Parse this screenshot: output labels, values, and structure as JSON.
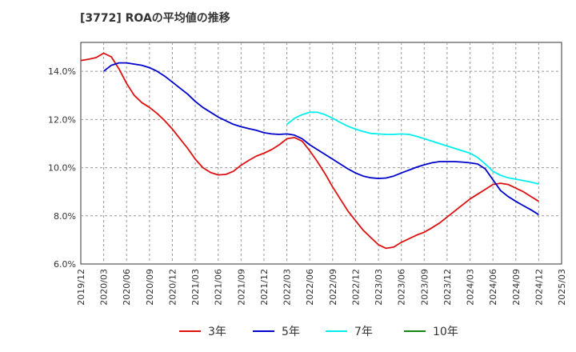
{
  "chart_data": {
    "type": "line",
    "title": "[3772]  ROAの平均値の推移",
    "xlabel": "",
    "ylabel": "",
    "ylim": [
      6.0,
      15.2
    ],
    "yticks": [
      6.0,
      8.0,
      10.0,
      12.0,
      14.0
    ],
    "ytick_labels": [
      "6.0%",
      "8.0%",
      "10.0%",
      "12.0%",
      "14.0%"
    ],
    "xlim": [
      "2019-12",
      "2025-03"
    ],
    "xtick_labels": [
      "2019/12",
      "2020/03",
      "2020/06",
      "2020/09",
      "2020/12",
      "2021/03",
      "2021/06",
      "2021/09",
      "2021/12",
      "2022/03",
      "2022/06",
      "2022/09",
      "2022/12",
      "2023/03",
      "2023/06",
      "2023/09",
      "2023/12",
      "2024/03",
      "2024/06",
      "2024/09",
      "2024/12",
      "2025/03"
    ],
    "grid": true,
    "legend_position": "bottom",
    "series": [
      {
        "name": "3年",
        "color": "#dd1111",
        "points": [
          [
            "2019-12",
            14.45
          ],
          [
            "2020-01",
            14.5
          ],
          [
            "2020-02",
            14.57
          ],
          [
            "2020-03",
            14.75
          ],
          [
            "2020-04",
            14.6
          ],
          [
            "2020-05",
            14.1
          ],
          [
            "2020-06",
            13.5
          ],
          [
            "2020-07",
            13.0
          ],
          [
            "2020-08",
            12.7
          ],
          [
            "2020-09",
            12.5
          ],
          [
            "2020-10",
            12.25
          ],
          [
            "2020-11",
            11.95
          ],
          [
            "2020-12",
            11.6
          ],
          [
            "2021-01",
            11.2
          ],
          [
            "2021-02",
            10.8
          ],
          [
            "2021-03",
            10.35
          ],
          [
            "2021-04",
            10.0
          ],
          [
            "2021-05",
            9.8
          ],
          [
            "2021-06",
            9.7
          ],
          [
            "2021-07",
            9.72
          ],
          [
            "2021-08",
            9.85
          ],
          [
            "2021-09",
            10.1
          ],
          [
            "2021-10",
            10.3
          ],
          [
            "2021-11",
            10.48
          ],
          [
            "2021-12",
            10.6
          ],
          [
            "2022-01",
            10.75
          ],
          [
            "2022-02",
            10.95
          ],
          [
            "2022-03",
            11.2
          ],
          [
            "2022-04",
            11.25
          ],
          [
            "2022-05",
            11.1
          ],
          [
            "2022-06",
            10.7
          ],
          [
            "2022-07",
            10.25
          ],
          [
            "2022-08",
            9.75
          ],
          [
            "2022-09",
            9.2
          ],
          [
            "2022-10",
            8.7
          ],
          [
            "2022-11",
            8.2
          ],
          [
            "2022-12",
            7.8
          ],
          [
            "2023-01",
            7.4
          ],
          [
            "2023-02",
            7.1
          ],
          [
            "2023-03",
            6.8
          ],
          [
            "2023-04",
            6.65
          ],
          [
            "2023-05",
            6.7
          ],
          [
            "2023-06",
            6.9
          ],
          [
            "2023-07",
            7.05
          ],
          [
            "2023-08",
            7.2
          ],
          [
            "2023-09",
            7.32
          ],
          [
            "2023-10",
            7.5
          ],
          [
            "2023-11",
            7.7
          ],
          [
            "2023-12",
            7.95
          ],
          [
            "2024-01",
            8.2
          ],
          [
            "2024-02",
            8.45
          ],
          [
            "2024-03",
            8.7
          ],
          [
            "2024-04",
            8.9
          ],
          [
            "2024-05",
            9.1
          ],
          [
            "2024-06",
            9.3
          ],
          [
            "2024-07",
            9.35
          ],
          [
            "2024-08",
            9.3
          ],
          [
            "2024-09",
            9.15
          ],
          [
            "2024-10",
            9.0
          ],
          [
            "2024-11",
            8.8
          ],
          [
            "2024-12",
            8.6
          ]
        ]
      },
      {
        "name": "5年",
        "color": "#0000cc",
        "points": [
          [
            "2020-03",
            14.0
          ],
          [
            "2020-04",
            14.25
          ],
          [
            "2020-05",
            14.35
          ],
          [
            "2020-06",
            14.35
          ],
          [
            "2020-07",
            14.3
          ],
          [
            "2020-08",
            14.25
          ],
          [
            "2020-09",
            14.15
          ],
          [
            "2020-10",
            14.0
          ],
          [
            "2020-11",
            13.8
          ],
          [
            "2020-12",
            13.55
          ],
          [
            "2021-01",
            13.3
          ],
          [
            "2021-02",
            13.05
          ],
          [
            "2021-03",
            12.75
          ],
          [
            "2021-04",
            12.5
          ],
          [
            "2021-05",
            12.3
          ],
          [
            "2021-06",
            12.1
          ],
          [
            "2021-07",
            11.95
          ],
          [
            "2021-08",
            11.8
          ],
          [
            "2021-09",
            11.7
          ],
          [
            "2021-10",
            11.62
          ],
          [
            "2021-11",
            11.55
          ],
          [
            "2021-12",
            11.45
          ],
          [
            "2022-01",
            11.4
          ],
          [
            "2022-02",
            11.38
          ],
          [
            "2022-03",
            11.4
          ],
          [
            "2022-04",
            11.35
          ],
          [
            "2022-05",
            11.2
          ],
          [
            "2022-06",
            10.95
          ],
          [
            "2022-07",
            10.75
          ],
          [
            "2022-08",
            10.55
          ],
          [
            "2022-09",
            10.35
          ],
          [
            "2022-10",
            10.15
          ],
          [
            "2022-11",
            9.95
          ],
          [
            "2022-12",
            9.78
          ],
          [
            "2023-01",
            9.65
          ],
          [
            "2023-02",
            9.58
          ],
          [
            "2023-03",
            9.55
          ],
          [
            "2023-04",
            9.57
          ],
          [
            "2023-05",
            9.65
          ],
          [
            "2023-06",
            9.78
          ],
          [
            "2023-07",
            9.9
          ],
          [
            "2023-08",
            10.02
          ],
          [
            "2023-09",
            10.12
          ],
          [
            "2023-10",
            10.2
          ],
          [
            "2023-11",
            10.25
          ],
          [
            "2023-12",
            10.25
          ],
          [
            "2024-01",
            10.25
          ],
          [
            "2024-02",
            10.23
          ],
          [
            "2024-03",
            10.2
          ],
          [
            "2024-04",
            10.15
          ],
          [
            "2024-05",
            9.95
          ],
          [
            "2024-06",
            9.5
          ],
          [
            "2024-07",
            9.05
          ],
          [
            "2024-08",
            8.8
          ],
          [
            "2024-09",
            8.6
          ],
          [
            "2024-10",
            8.42
          ],
          [
            "2024-11",
            8.25
          ],
          [
            "2024-12",
            8.05
          ]
        ]
      },
      {
        "name": "7年",
        "color": "#00eeee",
        "points": [
          [
            "2022-03",
            11.8
          ],
          [
            "2022-04",
            12.05
          ],
          [
            "2022-05",
            12.2
          ],
          [
            "2022-06",
            12.3
          ],
          [
            "2022-07",
            12.3
          ],
          [
            "2022-08",
            12.2
          ],
          [
            "2022-09",
            12.05
          ],
          [
            "2022-10",
            11.88
          ],
          [
            "2022-11",
            11.72
          ],
          [
            "2022-12",
            11.6
          ],
          [
            "2023-01",
            11.5
          ],
          [
            "2023-02",
            11.42
          ],
          [
            "2023-03",
            11.4
          ],
          [
            "2023-04",
            11.38
          ],
          [
            "2023-05",
            11.38
          ],
          [
            "2023-06",
            11.4
          ],
          [
            "2023-07",
            11.38
          ],
          [
            "2023-08",
            11.3
          ],
          [
            "2023-09",
            11.2
          ],
          [
            "2023-10",
            11.1
          ],
          [
            "2023-11",
            11.0
          ],
          [
            "2023-12",
            10.9
          ],
          [
            "2024-01",
            10.8
          ],
          [
            "2024-02",
            10.7
          ],
          [
            "2024-03",
            10.6
          ],
          [
            "2024-04",
            10.42
          ],
          [
            "2024-05",
            10.15
          ],
          [
            "2024-06",
            9.85
          ],
          [
            "2024-07",
            9.68
          ],
          [
            "2024-08",
            9.58
          ],
          [
            "2024-09",
            9.52
          ],
          [
            "2024-10",
            9.46
          ],
          [
            "2024-11",
            9.4
          ],
          [
            "2024-12",
            9.32
          ]
        ]
      },
      {
        "name": "10年",
        "color": "#118811",
        "points": []
      }
    ]
  }
}
